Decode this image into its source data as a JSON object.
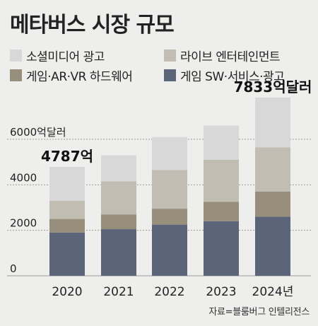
{
  "title": "메타버스 시장 규모",
  "source": "자료=블룸버그 인텔리전스",
  "colors": {
    "background": "#eeeeec",
    "gridline": "#9a9a9a"
  },
  "chart_data": {
    "type": "bar",
    "stacked": true,
    "categories": [
      "2020",
      "2021",
      "2022",
      "2023",
      "2024년"
    ],
    "y_tick_labels": [
      "0",
      "2000",
      "4000",
      "6000억달러"
    ],
    "y_ticks": [
      0,
      2000,
      4000,
      6000
    ],
    "ylim": [
      0,
      7900
    ],
    "grid": true,
    "legend_position": "top",
    "series": [
      {
        "name": "게임 SW·서비스·광고",
        "color": "#5c6479",
        "values": [
          1900,
          2050,
          2250,
          2400,
          2600
        ]
      },
      {
        "name": "게임·AR·VR 하드웨어",
        "color": "#978f7c",
        "values": [
          600,
          650,
          700,
          850,
          1100
        ]
      },
      {
        "name": "라이브 엔터테인먼트",
        "color": "#c1bdb3",
        "values": [
          800,
          1450,
          1700,
          1850,
          1950
        ]
      },
      {
        "name": "소셜미디어 광고",
        "color": "#d8d8d8",
        "values": [
          1487,
          1150,
          1450,
          1500,
          2183
        ]
      }
    ],
    "annotations": [
      {
        "category_index": 0,
        "text": "4787억"
      },
      {
        "category_index": 4,
        "text": "7833억달러"
      }
    ]
  }
}
